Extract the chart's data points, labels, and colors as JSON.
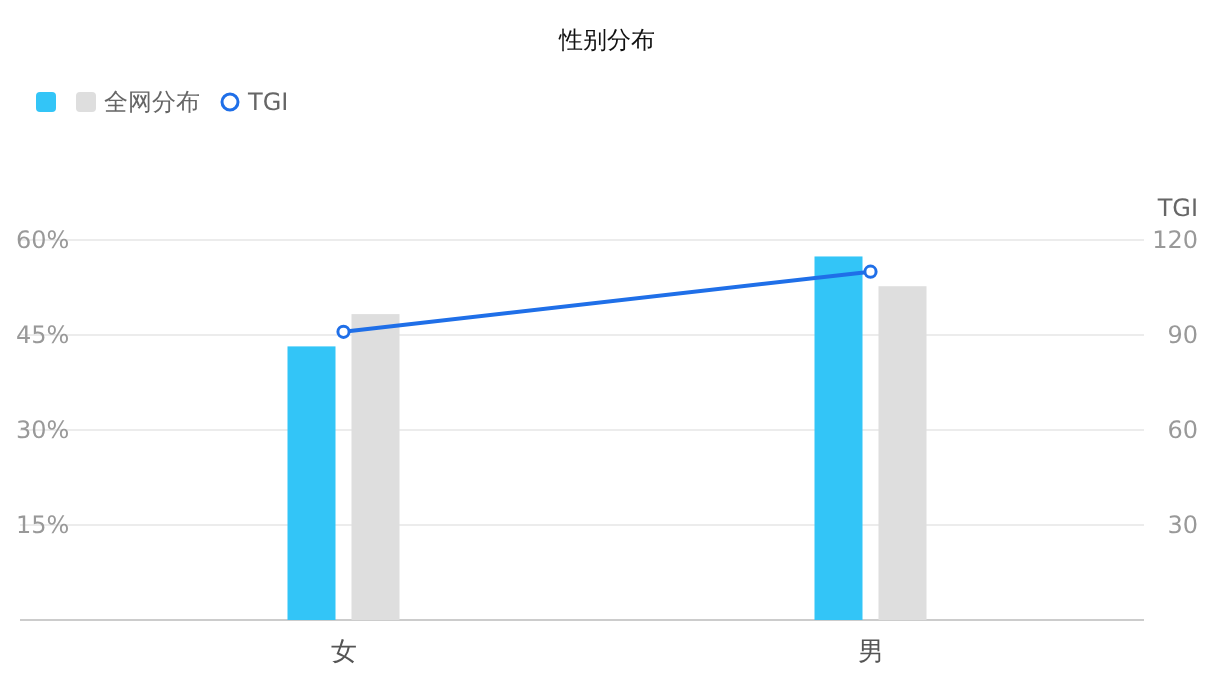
{
  "chart_data": {
    "type": "bar",
    "title": "性别分布",
    "categories": [
      "女",
      "男"
    ],
    "series": [
      {
        "color": "#33c5f7",
        "values": [
          43.2,
          57.4
        ]
      },
      {
        "name": "全网分布",
        "color": "#dedede",
        "values": [
          48.3,
          52.7
        ]
      },
      {
        "name": "TGI",
        "type": "line",
        "axis": "y2",
        "color": "#1f6fe8",
        "marker": "circle",
        "values": [
          91,
          110
        ]
      }
    ],
    "ylim": [
      0,
      60
    ],
    "yticks": [
      {
        "value": 15,
        "label": "15%"
      },
      {
        "value": 30,
        "label": "30%"
      },
      {
        "value": 45,
        "label": "45%"
      },
      {
        "value": 60,
        "label": "60%"
      }
    ],
    "y2lim": [
      0,
      120
    ],
    "y2ticks": [
      30,
      60,
      90,
      120
    ],
    "y2label": "TGI",
    "grid": "y",
    "legend": "top left"
  }
}
